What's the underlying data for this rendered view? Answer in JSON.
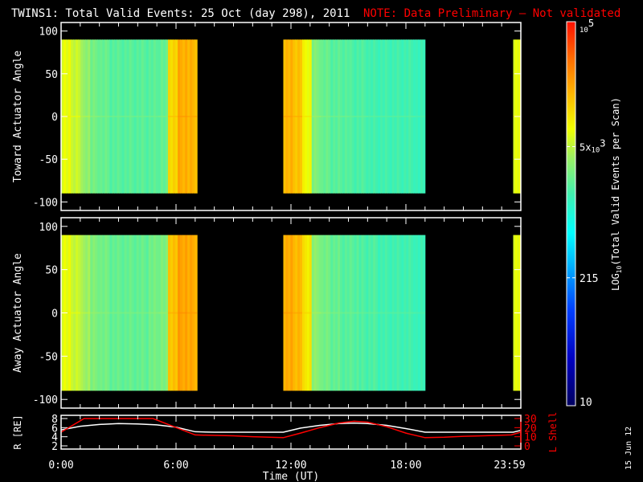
{
  "title": "TWINS1: Total Valid Events: 25 Oct (day 298), 2011",
  "note": "NOTE: Data Preliminary — Not validated",
  "date_stamp": "15 Jun 12",
  "colors": {
    "background": "#000000",
    "axes": "#ffffff",
    "note": "#ff0000",
    "lshell": "#ff0000",
    "radius": "#ffffff"
  },
  "chart_data": [
    {
      "type": "heatmap",
      "ylabel": "Toward Actuator Angle",
      "ylim": [
        -110,
        110
      ],
      "yticks": [
        "100",
        "50",
        "0",
        "-50",
        "-100"
      ],
      "ytick_values": [
        100,
        50,
        0,
        -50,
        -100
      ],
      "data_angle_range": [
        -90,
        90
      ],
      "xlim_hours": [
        0,
        24
      ],
      "segments": [
        {
          "start": 0,
          "end": 7.1,
          "log10_values": [
            3.85,
            3.75,
            3.55,
            3.4,
            3.35,
            3.3,
            3.3,
            3.3,
            3.3,
            3.3,
            3.35,
            4.1,
            4.3,
            4.25
          ]
        },
        {
          "start": 11.6,
          "end": 19.0,
          "log10_values": [
            4.25,
            4.2,
            3.9,
            3.45,
            3.35,
            3.3,
            3.3,
            3.25,
            3.25,
            3.2,
            3.2,
            3.2,
            3.2,
            3.2,
            3.15
          ]
        },
        {
          "start": 23.6,
          "end": 24.0,
          "log10_values": [
            3.85
          ]
        }
      ]
    },
    {
      "type": "heatmap",
      "ylabel": "Away Actuator Angle",
      "ylim": [
        -110,
        110
      ],
      "yticks": [
        "100",
        "50",
        "0",
        "-50",
        "-100"
      ],
      "ytick_values": [
        100,
        50,
        0,
        -50,
        -100
      ],
      "data_angle_range": [
        -90,
        90
      ],
      "xlim_hours": [
        0,
        24
      ],
      "segments": [
        {
          "start": 0,
          "end": 7.1,
          "log10_values": [
            3.85,
            3.75,
            3.6,
            3.45,
            3.4,
            3.35,
            3.35,
            3.35,
            3.35,
            3.4,
            3.45,
            4.2,
            4.35,
            4.3
          ]
        },
        {
          "start": 11.6,
          "end": 19.0,
          "log10_values": [
            4.3,
            4.25,
            4.0,
            3.5,
            3.4,
            3.35,
            3.3,
            3.3,
            3.25,
            3.25,
            3.2,
            3.2,
            3.2,
            3.2,
            3.15
          ]
        },
        {
          "start": 23.6,
          "end": 24.0,
          "log10_values": [
            3.85
          ]
        }
      ]
    },
    {
      "type": "line",
      "xlabel": "Time (UT)",
      "ylabel": "R [RE]",
      "ylim": [
        2,
        8
      ],
      "yticks": [
        "8",
        "6",
        "4",
        "2"
      ],
      "ytick_values": [
        8,
        6,
        4,
        2
      ],
      "y2label": "L Shell",
      "y2lim": [
        0,
        30
      ],
      "y2ticks": [
        "30",
        "20",
        "10",
        "0"
      ],
      "y2tick_values": [
        30,
        20,
        10,
        0
      ],
      "xticks": [
        "0:00",
        "6:00",
        "12:00",
        "18:00",
        "23:59"
      ],
      "xtick_values": [
        0,
        6,
        12,
        18,
        23.98
      ],
      "series": [
        {
          "axis": "left",
          "color": "#ffffff",
          "x": [
            0,
            1,
            2,
            3,
            4,
            5,
            6,
            7,
            8,
            9,
            10,
            11,
            11.6,
            12.5,
            13.5,
            14.5,
            15.3,
            16,
            17,
            18,
            19,
            20,
            21,
            22,
            23,
            23.6,
            24
          ],
          "y": [
            5.5,
            6.3,
            6.7,
            6.9,
            6.8,
            6.6,
            6.1,
            5.1,
            5.0,
            5.0,
            5.0,
            5.0,
            5.0,
            5.9,
            6.5,
            6.9,
            7.0,
            6.9,
            6.5,
            5.8,
            5.0,
            5.0,
            5.0,
            5.0,
            5.0,
            5.0,
            5.4
          ]
        },
        {
          "axis": "right",
          "color": "#ff0000",
          "x": [
            0,
            1.2,
            4.8,
            7,
            9,
            10,
            11.6,
            12.5,
            13.5,
            14.5,
            15.3,
            16,
            17,
            18,
            19,
            20,
            21,
            22,
            23.5,
            24
          ],
          "y": [
            15,
            30,
            30,
            12,
            11,
            10,
            9,
            14,
            20,
            25,
            27,
            26,
            21,
            14,
            9,
            9.5,
            10.5,
            11,
            12,
            15
          ]
        }
      ]
    }
  ],
  "colorbar": {
    "label_main": "LOG",
    "label_sub": "10",
    "label_rest": "(Total Valid Events per Scan)",
    "range": [
      10,
      100000
    ],
    "scale": "log",
    "ticks": [
      {
        "value": 100000,
        "base": "10",
        "exp": "5",
        "prefix": ""
      },
      {
        "value": 5000,
        "base": "10",
        "exp": "3",
        "prefix": "5x"
      },
      {
        "value": 215,
        "text": "215"
      },
      {
        "value": 10,
        "text": "10"
      }
    ]
  }
}
